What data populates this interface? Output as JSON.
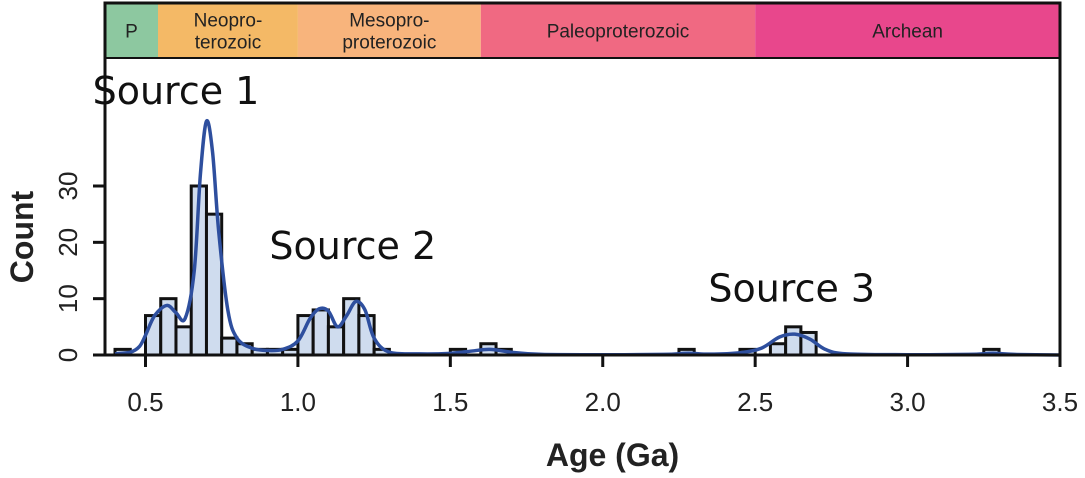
{
  "chart_data": {
    "type": "bar",
    "xlabel": "Age (Ga)",
    "ylabel": "Count",
    "xlim": [
      0.35,
      3.5
    ],
    "ylim": [
      0,
      43
    ],
    "x_ticks": [
      "0.5",
      "1.0",
      "1.5",
      "2.0",
      "2.5",
      "3.0",
      "3.5"
    ],
    "y_ticks": [
      "0",
      "10",
      "20",
      "30"
    ],
    "bin_width": 0.05,
    "bins": [
      {
        "x0": 0.4,
        "count": 1
      },
      {
        "x0": 0.5,
        "count": 7
      },
      {
        "x0": 0.55,
        "count": 10
      },
      {
        "x0": 0.6,
        "count": 5
      },
      {
        "x0": 0.65,
        "count": 30
      },
      {
        "x0": 0.7,
        "count": 25
      },
      {
        "x0": 0.75,
        "count": 3
      },
      {
        "x0": 0.8,
        "count": 2
      },
      {
        "x0": 0.85,
        "count": 1
      },
      {
        "x0": 0.9,
        "count": 1
      },
      {
        "x0": 0.95,
        "count": 1
      },
      {
        "x0": 1.0,
        "count": 7
      },
      {
        "x0": 1.05,
        "count": 8
      },
      {
        "x0": 1.1,
        "count": 5
      },
      {
        "x0": 1.15,
        "count": 10
      },
      {
        "x0": 1.2,
        "count": 7
      },
      {
        "x0": 1.25,
        "count": 1
      },
      {
        "x0": 1.5,
        "count": 1
      },
      {
        "x0": 1.6,
        "count": 2
      },
      {
        "x0": 1.65,
        "count": 1
      },
      {
        "x0": 2.25,
        "count": 1
      },
      {
        "x0": 2.45,
        "count": 1
      },
      {
        "x0": 2.55,
        "count": 2
      },
      {
        "x0": 2.6,
        "count": 5
      },
      {
        "x0": 2.65,
        "count": 4
      },
      {
        "x0": 3.25,
        "count": 1
      }
    ],
    "kde": [
      [
        0.4,
        0.2
      ],
      [
        0.45,
        0.5
      ],
      [
        0.48,
        1.5
      ],
      [
        0.5,
        3.5
      ],
      [
        0.53,
        7.0
      ],
      [
        0.57,
        8.8
      ],
      [
        0.6,
        7.5
      ],
      [
        0.63,
        6.5
      ],
      [
        0.66,
        15
      ],
      [
        0.68,
        32
      ],
      [
        0.7,
        41.5
      ],
      [
        0.72,
        36
      ],
      [
        0.74,
        22
      ],
      [
        0.77,
        8
      ],
      [
        0.8,
        3
      ],
      [
        0.85,
        1.2
      ],
      [
        0.9,
        0.8
      ],
      [
        0.95,
        1.0
      ],
      [
        1.0,
        2.5
      ],
      [
        1.04,
        6.5
      ],
      [
        1.07,
        8.2
      ],
      [
        1.1,
        7.8
      ],
      [
        1.13,
        5.0
      ],
      [
        1.16,
        7.0
      ],
      [
        1.19,
        9.5
      ],
      [
        1.22,
        8.0
      ],
      [
        1.25,
        3.0
      ],
      [
        1.3,
        0.5
      ],
      [
        1.4,
        0.2
      ],
      [
        1.5,
        0.3
      ],
      [
        1.57,
        0.7
      ],
      [
        1.63,
        1.0
      ],
      [
        1.7,
        0.5
      ],
      [
        1.8,
        0.1
      ],
      [
        2.0,
        0.05
      ],
      [
        2.2,
        0.1
      ],
      [
        2.28,
        0.3
      ],
      [
        2.35,
        0.15
      ],
      [
        2.45,
        0.4
      ],
      [
        2.52,
        1.2
      ],
      [
        2.58,
        3.2
      ],
      [
        2.63,
        3.7
      ],
      [
        2.68,
        2.8
      ],
      [
        2.73,
        1.0
      ],
      [
        2.8,
        0.2
      ],
      [
        3.0,
        0.05
      ],
      [
        3.2,
        0.1
      ],
      [
        3.28,
        0.3
      ],
      [
        3.35,
        0.1
      ],
      [
        3.5,
        0.0
      ]
    ],
    "eras": [
      {
        "label_lines": [
          "P"
        ],
        "start": 0.35,
        "end": 0.541,
        "color": "#8dc8a0"
      },
      {
        "label_lines": [
          "Neopro-",
          "terozoic"
        ],
        "start": 0.541,
        "end": 1.0,
        "color": "#f4b966"
      },
      {
        "label_lines": [
          "Mesopro-",
          "proterozoic"
        ],
        "start": 1.0,
        "end": 1.6,
        "color": "#f8b47c"
      },
      {
        "label_lines": [
          "Paleoproterozoic"
        ],
        "start": 1.6,
        "end": 2.5,
        "color": "#f06982"
      },
      {
        "label_lines": [
          "Archean"
        ],
        "start": 2.5,
        "end": 3.5,
        "color": "#e8478c"
      }
    ],
    "annotations": [
      {
        "text": "Source 1",
        "x": 0.6,
        "y": 47
      },
      {
        "text": "Source 2",
        "x": 1.18,
        "y": 19.5
      },
      {
        "text": "Source 3",
        "x": 2.62,
        "y": 12
      }
    ],
    "bar_fill": "#cfdcee",
    "bar_edge": "#111111",
    "kde_color": "#2e4f9e"
  }
}
